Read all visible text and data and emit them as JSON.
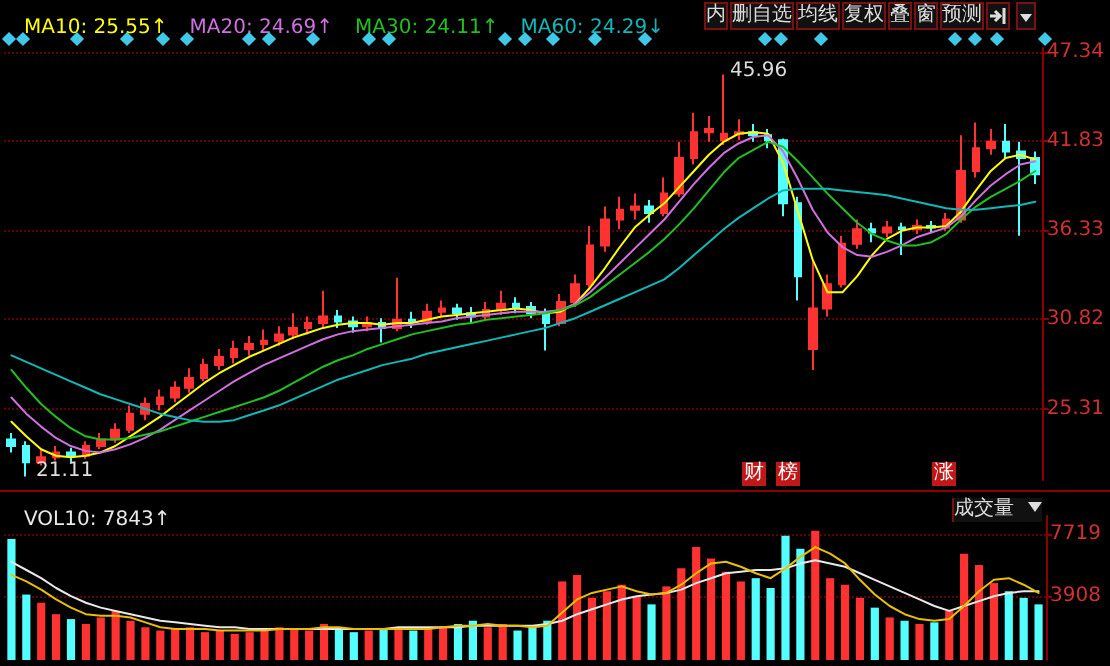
{
  "chart_data": [
    {
      "type": "candlestick",
      "categories": [
        null,
        null,
        null,
        null,
        null,
        null,
        null,
        null,
        null,
        null,
        null,
        null,
        null,
        null,
        null,
        null,
        null,
        null,
        null,
        null,
        null,
        null,
        null,
        null,
        null,
        null,
        null,
        null,
        null,
        null,
        null,
        null,
        null,
        null,
        null,
        null,
        null,
        null,
        null,
        null,
        null,
        null,
        null,
        null,
        null,
        null,
        null,
        null,
        null,
        null,
        null,
        null,
        null,
        null,
        null,
        null,
        null,
        null,
        null,
        null,
        null,
        null,
        null,
        null,
        null,
        null,
        null,
        null,
        null,
        null
      ],
      "ohlc": [
        [
          23.4,
          23.8,
          22.6,
          23.0
        ],
        [
          23.0,
          23.3,
          21.11,
          22.0
        ],
        [
          22.0,
          22.8,
          21.8,
          22.3
        ],
        [
          22.3,
          23.0,
          22.1,
          22.6
        ],
        [
          22.6,
          22.9,
          22.0,
          22.4
        ],
        [
          22.4,
          23.3,
          22.2,
          23.0
        ],
        [
          23.0,
          23.8,
          22.8,
          23.4
        ],
        [
          23.4,
          24.4,
          23.2,
          24.0
        ],
        [
          24.0,
          25.5,
          23.8,
          25.0
        ],
        [
          25.0,
          26.0,
          24.6,
          25.6
        ],
        [
          25.6,
          26.5,
          25.2,
          26.0
        ],
        [
          26.0,
          27.0,
          25.7,
          26.6
        ],
        [
          26.6,
          27.8,
          26.3,
          27.2
        ],
        [
          27.2,
          28.4,
          27.0,
          28.0
        ],
        [
          28.0,
          29.0,
          27.7,
          28.5
        ],
        [
          28.5,
          29.5,
          28.1,
          29.0
        ],
        [
          29.0,
          29.8,
          28.6,
          29.3
        ],
        [
          29.3,
          30.2,
          28.9,
          29.5
        ],
        [
          29.5,
          30.4,
          29.2,
          29.9
        ],
        [
          29.9,
          31.2,
          29.6,
          30.3
        ],
        [
          30.3,
          31.0,
          29.9,
          30.6
        ],
        [
          30.6,
          32.6,
          30.3,
          31.0
        ],
        [
          31.0,
          31.4,
          30.3,
          30.7
        ],
        [
          30.7,
          31.0,
          30.0,
          30.4
        ],
        [
          30.4,
          31.0,
          30.1,
          30.6
        ],
        [
          30.6,
          30.9,
          29.4,
          30.3
        ],
        [
          30.3,
          33.4,
          30.1,
          30.8
        ],
        [
          30.8,
          31.3,
          30.3,
          30.7
        ],
        [
          30.7,
          31.8,
          30.5,
          31.3
        ],
        [
          31.3,
          32.0,
          31.0,
          31.5
        ],
        [
          31.5,
          31.8,
          30.8,
          31.2
        ],
        [
          31.2,
          31.6,
          30.6,
          31.0
        ],
        [
          31.0,
          31.9,
          30.8,
          31.4
        ],
        [
          31.4,
          32.6,
          31.1,
          31.8
        ],
        [
          31.8,
          32.2,
          31.2,
          31.6
        ],
        [
          31.6,
          31.9,
          30.9,
          31.2
        ],
        [
          31.2,
          31.5,
          28.9,
          30.6
        ],
        [
          30.6,
          32.4,
          30.4,
          31.9
        ],
        [
          31.9,
          33.6,
          31.6,
          33.0
        ],
        [
          33.0,
          36.6,
          32.8,
          35.4
        ],
        [
          35.4,
          37.8,
          35.0,
          37.0
        ],
        [
          37.0,
          38.4,
          36.4,
          37.6
        ],
        [
          37.6,
          38.6,
          37.0,
          37.8
        ],
        [
          37.8,
          38.2,
          36.8,
          37.4
        ],
        [
          37.4,
          39.6,
          37.2,
          38.6
        ],
        [
          38.6,
          41.8,
          38.4,
          40.8
        ],
        [
          40.8,
          43.6,
          40.4,
          42.4
        ],
        [
          42.4,
          43.4,
          41.8,
          42.6
        ],
        [
          41.9,
          45.96,
          41.6,
          42.3
        ],
        [
          42.3,
          43.2,
          41.9,
          42.4
        ],
        [
          42.4,
          42.9,
          41.8,
          42.2
        ],
        [
          42.2,
          42.6,
          41.4,
          41.9
        ],
        [
          41.9,
          42.0,
          37.2,
          38.0
        ],
        [
          38.0,
          38.4,
          32.0,
          33.5
        ],
        [
          29.0,
          34.5,
          27.7,
          31.5
        ],
        [
          31.5,
          33.6,
          31.0,
          33.0
        ],
        [
          33.0,
          36.0,
          32.8,
          35.5
        ],
        [
          35.5,
          37.0,
          35.2,
          36.4
        ],
        [
          36.4,
          36.8,
          35.6,
          36.2
        ],
        [
          36.2,
          36.9,
          35.9,
          36.5
        ],
        [
          36.5,
          36.8,
          34.8,
          36.4
        ],
        [
          36.4,
          37.0,
          36.1,
          36.6
        ],
        [
          36.6,
          36.9,
          36.2,
          36.5
        ],
        [
          36.5,
          37.4,
          36.3,
          37.0
        ],
        [
          37.0,
          42.2,
          36.8,
          40.0
        ],
        [
          40.0,
          43.0,
          39.6,
          41.4
        ],
        [
          41.4,
          42.6,
          41.0,
          41.8
        ],
        [
          41.8,
          42.9,
          40.8,
          41.2
        ],
        [
          41.2,
          41.8,
          36.0,
          40.8
        ],
        [
          40.8,
          41.2,
          39.2,
          39.8
        ]
      ],
      "colors": [
        "#54ffff",
        "#54ffff",
        "#ff3232",
        "#ff3232",
        "#54ffff",
        "#ff3232",
        "#ff3232",
        "#ff3232",
        "#ff3232",
        "#ff3232",
        "#ff3232",
        "#ff3232",
        "#ff3232",
        "#ff3232",
        "#ff3232",
        "#ff3232",
        "#ff3232",
        "#ff3232",
        "#ff3232",
        "#ff3232",
        "#ff3232",
        "#ff3232",
        "#54ffff",
        "#54ffff",
        "#ff3232",
        "#54ffff",
        "#ff3232",
        "#54ffff",
        "#ff3232",
        "#ff3232",
        "#54ffff",
        "#54ffff",
        "#ff3232",
        "#ff3232",
        "#54ffff",
        "#54ffff",
        "#54ffff",
        "#ff3232",
        "#ff3232",
        "#ff3232",
        "#ff3232",
        "#ff3232",
        "#ff3232",
        "#54ffff",
        "#ff3232",
        "#ff3232",
        "#ff3232",
        "#ff3232",
        "#ff3232",
        "#ff3232",
        "#54ffff",
        "#54ffff",
        "#54ffff",
        "#54ffff",
        "#ff3232",
        "#ff3232",
        "#ff3232",
        "#ff3232",
        "#54ffff",
        "#ff3232",
        "#54ffff",
        "#ff3232",
        "#54ffff",
        "#ff3232",
        "#ff3232",
        "#ff3232",
        "#ff3232",
        "#54ffff",
        "#54ffff",
        "#54ffff"
      ],
      "series": [
        {
          "name": "MA10: 25.55↑",
          "type": "line",
          "color": "#ffff00",
          "values": [
            24.5,
            23.6,
            22.8,
            22.4,
            22.3,
            22.4,
            22.6,
            23.0,
            23.6,
            24.2,
            24.8,
            25.5,
            26.2,
            26.9,
            27.5,
            28.0,
            28.5,
            28.9,
            29.3,
            29.7,
            30.0,
            30.3,
            30.5,
            30.6,
            30.6,
            30.5,
            30.6,
            30.6,
            30.8,
            31.0,
            31.1,
            31.2,
            31.3,
            31.4,
            31.5,
            31.4,
            31.2,
            31.3,
            31.8,
            32.8,
            34.0,
            35.3,
            36.5,
            37.3,
            38.0,
            39.0,
            40.0,
            41.0,
            41.8,
            42.3,
            42.4,
            42.3,
            40.5,
            37.5,
            34.5,
            32.5,
            32.5,
            33.5,
            34.8,
            35.8,
            36.3,
            36.5,
            36.5,
            36.6,
            37.5,
            38.8,
            40.0,
            40.8,
            41.0,
            40.7
          ]
        },
        {
          "name": "MA20: 24.69↑",
          "type": "line",
          "color": "#d070e0",
          "values": [
            26.0,
            25.0,
            24.2,
            23.5,
            23.0,
            22.7,
            22.6,
            22.8,
            23.1,
            23.5,
            24.0,
            24.6,
            25.2,
            25.8,
            26.4,
            27.0,
            27.5,
            28.0,
            28.4,
            28.8,
            29.2,
            29.6,
            29.9,
            30.1,
            30.2,
            30.3,
            30.4,
            30.5,
            30.6,
            30.7,
            30.9,
            31.0,
            31.1,
            31.2,
            31.3,
            31.3,
            31.3,
            31.4,
            31.8,
            32.5,
            33.4,
            34.3,
            35.2,
            36.1,
            37.0,
            38.1,
            39.2,
            40.2,
            41.1,
            41.7,
            42.1,
            42.2,
            41.2,
            39.5,
            37.6,
            36.2,
            35.3,
            34.8,
            34.7,
            35.0,
            35.4,
            35.9,
            36.2,
            36.5,
            37.2,
            38.2,
            39.1,
            39.8,
            40.4,
            40.6
          ]
        },
        {
          "name": "MA30: 24.11↑",
          "type": "line",
          "color": "#20c020",
          "values": [
            27.7,
            26.6,
            25.6,
            24.8,
            24.1,
            23.6,
            23.4,
            23.4,
            23.5,
            23.7,
            23.9,
            24.2,
            24.5,
            24.8,
            25.1,
            25.4,
            25.7,
            26.0,
            26.4,
            26.9,
            27.4,
            27.9,
            28.3,
            28.6,
            29.0,
            29.3,
            29.6,
            29.9,
            30.1,
            30.3,
            30.5,
            30.6,
            30.8,
            30.9,
            31.0,
            31.1,
            31.2,
            31.4,
            31.7,
            32.2,
            32.9,
            33.6,
            34.3,
            35.0,
            35.8,
            36.7,
            37.7,
            38.8,
            39.9,
            40.8,
            41.3,
            41.8,
            41.5,
            40.6,
            39.6,
            38.6,
            37.7,
            36.8,
            36.1,
            35.7,
            35.4,
            35.4,
            35.6,
            36.1,
            37.0,
            37.8,
            38.4,
            38.9,
            39.4,
            40.0
          ]
        },
        {
          "name": "MA60: 24.29↓",
          "type": "line",
          "color": "#10b8b8",
          "values": [
            28.6,
            28.2,
            27.8,
            27.4,
            27.0,
            26.6,
            26.2,
            25.9,
            25.6,
            25.3,
            25.0,
            24.8,
            24.6,
            24.5,
            24.5,
            24.6,
            24.9,
            25.2,
            25.5,
            25.9,
            26.3,
            26.7,
            27.1,
            27.4,
            27.7,
            28.0,
            28.2,
            28.4,
            28.7,
            28.9,
            29.1,
            29.3,
            29.5,
            29.7,
            29.9,
            30.1,
            30.3,
            30.6,
            30.9,
            31.3,
            31.7,
            32.1,
            32.5,
            32.9,
            33.3,
            34.0,
            34.8,
            35.6,
            36.4,
            37.1,
            37.7,
            38.3,
            38.8,
            38.9,
            38.9,
            38.9,
            38.8,
            38.7,
            38.6,
            38.5,
            38.3,
            38.1,
            37.9,
            37.7,
            37.6,
            37.6,
            37.7,
            37.8,
            37.9,
            38.1
          ]
        }
      ],
      "ylim": [
        20.9,
        47.6
      ],
      "yticks": [
        25.31,
        30.82,
        36.33,
        41.83,
        47.34
      ],
      "grid": "y",
      "legend": "top left",
      "tick_labels": "y",
      "line_style": "solid",
      "annotations": [
        "45.96",
        "21.11",
        "内",
        "删自选",
        "均线",
        "复权",
        "叠",
        "窗",
        "预测",
        "财",
        "榜",
        "涨"
      ]
    },
    {
      "type": "bar",
      "categories": [
        null,
        null,
        null,
        null,
        null,
        null,
        null,
        null,
        null,
        null,
        null,
        null,
        null,
        null,
        null,
        null,
        null,
        null,
        null,
        null,
        null,
        null,
        null,
        null,
        null,
        null,
        null,
        null,
        null,
        null,
        null,
        null,
        null,
        null,
        null,
        null,
        null,
        null,
        null,
        null,
        null,
        null,
        null,
        null,
        null,
        null,
        null,
        null,
        null,
        null,
        null,
        null,
        null,
        null,
        null,
        null,
        null,
        null,
        null,
        null,
        null,
        null,
        null,
        null,
        null,
        null,
        null,
        null,
        null,
        null
      ],
      "series": [
        {
          "type": "bar",
          "values": [
            7400,
            4000,
            3500,
            2800,
            2500,
            2200,
            2600,
            3000,
            2400,
            2000,
            1800,
            1900,
            2000,
            1700,
            1800,
            1600,
            1700,
            1800,
            2000,
            1900,
            1800,
            2200,
            1900,
            1700,
            1800,
            1900,
            2000,
            1800,
            1900,
            2000,
            2200,
            2400,
            2000,
            2200,
            1800,
            2000,
            2400,
            4800,
            5200,
            3800,
            4200,
            4600,
            3900,
            3400,
            4500,
            5600,
            6900,
            6200,
            5400,
            4800,
            5000,
            4400,
            7600,
            6800,
            7900,
            5000,
            4600,
            3800,
            3200,
            2600,
            2400,
            2200,
            2300,
            3000,
            6500,
            5800,
            4700,
            4200,
            3800,
            3400
          ],
          "colors": [
            "#54ffff",
            "#54ffff",
            "#ff3232",
            "#ff3232",
            "#54ffff",
            "#ff3232",
            "#ff3232",
            "#ff3232",
            "#ff3232",
            "#ff3232",
            "#ff3232",
            "#ff3232",
            "#ff3232",
            "#ff3232",
            "#ff3232",
            "#ff3232",
            "#ff3232",
            "#ff3232",
            "#ff3232",
            "#ff3232",
            "#ff3232",
            "#ff3232",
            "#54ffff",
            "#54ffff",
            "#ff3232",
            "#54ffff",
            "#ff3232",
            "#54ffff",
            "#ff3232",
            "#ff3232",
            "#54ffff",
            "#54ffff",
            "#ff3232",
            "#ff3232",
            "#54ffff",
            "#54ffff",
            "#54ffff",
            "#ff3232",
            "#ff3232",
            "#ff3232",
            "#ff3232",
            "#ff3232",
            "#ff3232",
            "#54ffff",
            "#ff3232",
            "#ff3232",
            "#ff3232",
            "#ff3232",
            "#ff3232",
            "#ff3232",
            "#54ffff",
            "#54ffff",
            "#54ffff",
            "#54ffff",
            "#ff3232",
            "#ff3232",
            "#ff3232",
            "#ff3232",
            "#54ffff",
            "#ff3232",
            "#54ffff",
            "#ff3232",
            "#54ffff",
            "#ff3232",
            "#ff3232",
            "#ff3232",
            "#ff3232",
            "#54ffff",
            "#54ffff",
            "#54ffff"
          ]
        },
        {
          "name": "VOL10: 7843↑",
          "type": "line",
          "color": "#e8e8e8",
          "values": [
            6000,
            5500,
            5000,
            4400,
            3900,
            3500,
            3200,
            3000,
            2800,
            2600,
            2400,
            2300,
            2200,
            2100,
            2000,
            2000,
            1900,
            1900,
            1900,
            1900,
            1900,
            1900,
            1900,
            1900,
            1900,
            1900,
            2000,
            2000,
            2000,
            2000,
            2000,
            2100,
            2100,
            2100,
            2100,
            2100,
            2200,
            2400,
            2800,
            3100,
            3400,
            3700,
            3900,
            4000,
            4100,
            4300,
            4700,
            5000,
            5300,
            5400,
            5500,
            5500,
            5600,
            5900,
            6100,
            5900,
            5700,
            5300,
            4900,
            4500,
            4100,
            3700,
            3300,
            3000,
            3300,
            3600,
            3900,
            4100,
            4200,
            4200
          ]
        },
        {
          "type": "line",
          "color": "#e8c000",
          "values": [
            5200,
            4800,
            4300,
            3700,
            3200,
            2800,
            2700,
            2700,
            2600,
            2300,
            2000,
            1900,
            1900,
            1900,
            1800,
            1800,
            1800,
            1800,
            1900,
            1900,
            1900,
            2000,
            2000,
            1900,
            1900,
            1900,
            1900,
            1900,
            1900,
            2000,
            2100,
            2100,
            2200,
            2100,
            2100,
            2000,
            2100,
            2900,
            3700,
            4100,
            4300,
            4500,
            4200,
            4000,
            4100,
            4600,
            5300,
            5900,
            6000,
            5700,
            5300,
            5000,
            5600,
            6300,
            6900,
            6500,
            5900,
            4900,
            4000,
            3300,
            2800,
            2500,
            2400,
            2500,
            3300,
            4200,
            4900,
            5000,
            4600,
            4100
          ]
        }
      ],
      "ylim": [
        0,
        8800
      ],
      "yticks": [
        3908,
        7719
      ],
      "grid": "y",
      "legend": "top left",
      "tick_labels": "y",
      "line_style": "solid",
      "annotations": [
        "成交量"
      ]
    }
  ]
}
